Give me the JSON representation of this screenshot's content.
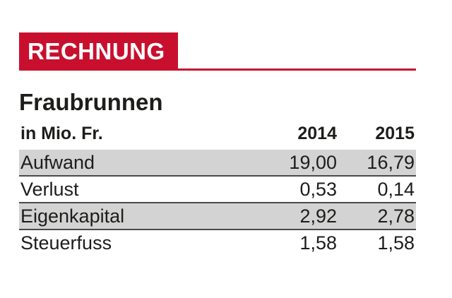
{
  "header": {
    "label": "RECHNUNG",
    "accent_color": "#c8102e"
  },
  "title": "Fraubrunnen",
  "table": {
    "unit_label": "in Mio. Fr.",
    "columns": [
      "2014",
      "2015"
    ],
    "rows": [
      {
        "label": "Aufwand",
        "values": [
          "19,00",
          "16,79"
        ],
        "shaded": true
      },
      {
        "label": "Verlust",
        "values": [
          "0,53",
          "0,14"
        ],
        "shaded": false
      },
      {
        "label": "Eigenkapital",
        "values": [
          "2,92",
          "2,78"
        ],
        "shaded": true
      },
      {
        "label": "Steuerfuss",
        "values": [
          "1,58",
          "1,58"
        ],
        "shaded": false
      }
    ]
  }
}
